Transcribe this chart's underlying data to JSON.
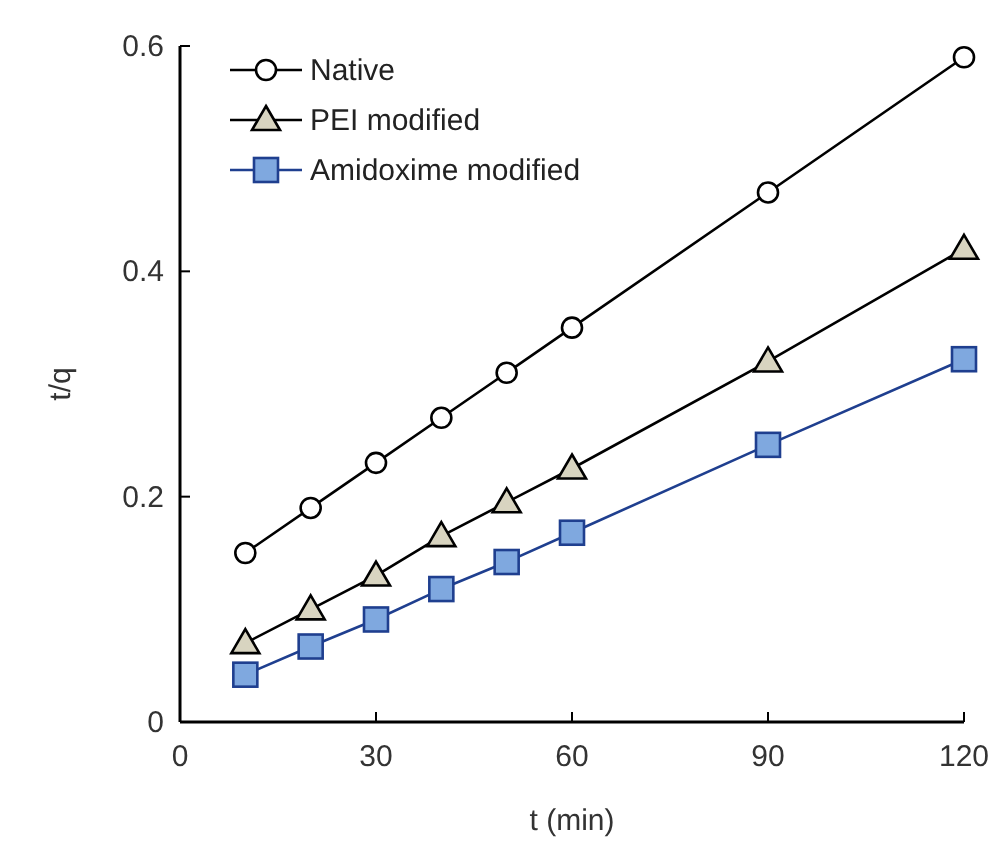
{
  "chart_data": {
    "type": "line",
    "xlabel": "t (min)",
    "ylabel": "t/q",
    "x": [
      10,
      20,
      30,
      40,
      50,
      60,
      90,
      120
    ],
    "xlim": [
      0,
      120
    ],
    "xticks": [
      0,
      30,
      60,
      90,
      120
    ],
    "ylim": [
      0,
      0.6
    ],
    "yticks": [
      0,
      {
        "value": 0.2,
        "label": "0.2"
      },
      {
        "value": 0.4,
        "label": "0.4"
      },
      {
        "value": 0.6,
        "label": "0.6"
      }
    ],
    "legend": "top left",
    "grid": false,
    "series": [
      {
        "name": "Native",
        "color": "#000000",
        "marker": "circle",
        "values": [
          0.15,
          0.19,
          0.23,
          0.27,
          0.31,
          0.35,
          0.47,
          0.59
        ]
      },
      {
        "name": "PEI modified",
        "color": "#000000",
        "marker": "triangle",
        "values": [
          0.07,
          0.1,
          0.13,
          0.165,
          0.195,
          0.225,
          0.32,
          0.42
        ]
      },
      {
        "name": "Amidoxime modified",
        "color": "#1f3f8f",
        "marker": "square",
        "values": [
          0.042,
          0.067,
          0.091,
          0.118,
          0.142,
          0.168,
          0.246,
          0.322
        ]
      }
    ]
  }
}
